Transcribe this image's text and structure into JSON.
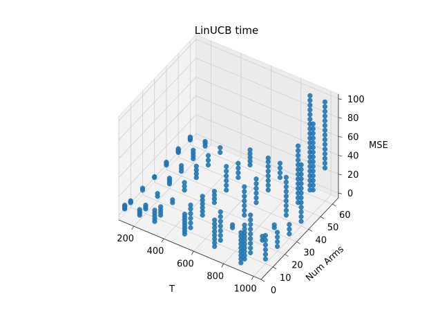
{
  "chart_data": {
    "type": "scatter",
    "projection": "3d",
    "title": "LinUCB time",
    "xlabel": "T",
    "ylabel": "Num Arms",
    "zlabel": "MSE",
    "xticks": [
      200,
      400,
      600,
      800,
      1000
    ],
    "yticks": [
      0,
      10,
      20,
      30,
      40,
      50,
      60
    ],
    "zticks": [
      0,
      20,
      40,
      60,
      80,
      100
    ],
    "xlim": [
      100,
      1050
    ],
    "ylim": [
      0,
      65
    ],
    "zlim": [
      -5,
      105
    ],
    "grid": true,
    "marker_color": "#1f77b4",
    "points": [
      {
        "T": 100,
        "arms": 5,
        "mse": [
          0,
          1,
          2,
          3,
          4
        ]
      },
      {
        "T": 100,
        "arms": 10,
        "mse": [
          0,
          1,
          2
        ]
      },
      {
        "T": 100,
        "arms": 20,
        "mse": [
          0,
          2
        ]
      },
      {
        "T": 100,
        "arms": 30,
        "mse": [
          0,
          1
        ]
      },
      {
        "T": 100,
        "arms": 40,
        "mse": [
          0,
          2,
          3
        ]
      },
      {
        "T": 100,
        "arms": 50,
        "mse": [
          0,
          1,
          2,
          3,
          4
        ]
      },
      {
        "T": 100,
        "arms": 60,
        "mse": [
          0,
          1,
          2,
          3
        ]
      },
      {
        "T": 200,
        "arms": 5,
        "mse": [
          0,
          2,
          4,
          6
        ]
      },
      {
        "T": 200,
        "arms": 10,
        "mse": [
          0,
          2,
          4
        ]
      },
      {
        "T": 200,
        "arms": 20,
        "mse": [
          0,
          3
        ]
      },
      {
        "T": 200,
        "arms": 30,
        "mse": [
          0,
          2,
          4,
          6
        ]
      },
      {
        "T": 200,
        "arms": 40,
        "mse": [
          0,
          3,
          6
        ]
      },
      {
        "T": 200,
        "arms": 50,
        "mse": [
          0,
          3,
          6,
          9
        ]
      },
      {
        "T": 200,
        "arms": 60,
        "mse": [
          0,
          3,
          5
        ]
      },
      {
        "T": 300,
        "arms": 5,
        "mse": [
          0,
          3,
          6,
          9,
          12
        ]
      },
      {
        "T": 300,
        "arms": 10,
        "mse": [
          0,
          3,
          6,
          9
        ]
      },
      {
        "T": 300,
        "arms": 20,
        "mse": [
          0,
          3
        ]
      },
      {
        "T": 300,
        "arms": 30,
        "mse": [
          0,
          4,
          8
        ]
      },
      {
        "T": 300,
        "arms": 40,
        "mse": [
          0,
          4,
          8,
          12
        ]
      },
      {
        "T": 300,
        "arms": 50,
        "mse": [
          0,
          5,
          10
        ]
      },
      {
        "T": 300,
        "arms": 60,
        "mse": [
          0,
          5
        ]
      },
      {
        "T": 500,
        "arms": 5,
        "mse": [
          0,
          3,
          6,
          9,
          12,
          15,
          18,
          21
        ]
      },
      {
        "T": 500,
        "arms": 10,
        "mse": [
          0,
          5,
          10,
          15,
          20,
          24
        ]
      },
      {
        "T": 500,
        "arms": 20,
        "mse": [
          0,
          4,
          8,
          12,
          16,
          20
        ]
      },
      {
        "T": 500,
        "arms": 30,
        "mse": [
          0,
          4,
          8,
          12
        ]
      },
      {
        "T": 500,
        "arms": 40,
        "mse": [
          0,
          5,
          10,
          15,
          20,
          25
        ]
      },
      {
        "T": 500,
        "arms": 50,
        "mse": [
          0,
          5,
          10,
          15
        ]
      },
      {
        "T": 500,
        "arms": 60,
        "mse": [
          0,
          4,
          8,
          12,
          16
        ]
      },
      {
        "T": 700,
        "arms": 5,
        "mse": [
          0,
          4,
          8,
          12,
          16,
          20,
          24,
          28
        ]
      },
      {
        "T": 700,
        "arms": 10,
        "mse": [
          0,
          5,
          10,
          15,
          20,
          25,
          30
        ]
      },
      {
        "T": 700,
        "arms": 20,
        "mse": [
          0,
          3
        ]
      },
      {
        "T": 700,
        "arms": 30,
        "mse": [
          0,
          5,
          10,
          15,
          20,
          25,
          30
        ]
      },
      {
        "T": 700,
        "arms": 40,
        "mse": [
          0,
          5,
          10,
          15,
          20,
          25
        ]
      },
      {
        "T": 700,
        "arms": 50,
        "mse": [
          0,
          5,
          10,
          15,
          20,
          25,
          30,
          34
        ]
      },
      {
        "T": 700,
        "arms": 60,
        "mse": [
          0,
          5,
          10,
          15
        ]
      },
      {
        "T": 900,
        "arms": 2,
        "mse": [
          0,
          4,
          8,
          12,
          16,
          20,
          24,
          28,
          32
        ]
      },
      {
        "T": 900,
        "arms": 5,
        "mse": [
          0,
          4,
          8,
          12,
          16,
          20,
          24,
          28,
          32,
          36
        ]
      },
      {
        "T": 900,
        "arms": 10,
        "mse": [
          0,
          5,
          10,
          15,
          20,
          25,
          30,
          35,
          40
        ]
      },
      {
        "T": 900,
        "arms": 20,
        "mse": [
          0,
          4
        ]
      },
      {
        "T": 900,
        "arms": 30,
        "mse": [
          0,
          3
        ]
      },
      {
        "T": 900,
        "arms": 40,
        "mse": [
          0,
          5,
          10,
          15,
          20,
          25,
          30,
          35,
          40
        ]
      },
      {
        "T": 900,
        "arms": 50,
        "mse": [
          0,
          5,
          10,
          15,
          20,
          25,
          30,
          35,
          40,
          45,
          50,
          55,
          60
        ]
      },
      {
        "T": 900,
        "arms": 60,
        "mse": [
          0,
          5,
          10,
          15,
          20,
          25,
          30,
          35,
          40,
          45,
          50,
          55,
          60,
          65,
          70,
          75,
          80,
          85,
          90,
          95,
          100
        ]
      },
      {
        "T": 1000,
        "arms": 10,
        "mse": [
          0,
          5,
          10,
          15,
          20,
          25
        ]
      },
      {
        "T": 1000,
        "arms": 20,
        "mse": [
          0,
          5,
          10,
          15
        ]
      },
      {
        "T": 1000,
        "arms": 30,
        "mse": [
          0,
          5,
          10
        ]
      },
      {
        "T": 1000,
        "arms": 40,
        "mse": [
          0,
          5,
          10,
          15,
          20,
          25,
          30,
          35,
          40,
          45,
          50,
          55,
          60
        ]
      },
      {
        "T": 1000,
        "arms": 50,
        "mse": [
          20,
          25,
          30,
          35,
          40,
          45,
          50,
          55,
          60,
          65,
          70,
          75,
          80,
          85,
          90
        ]
      },
      {
        "T": 1000,
        "arms": 60,
        "mse": [
          30,
          35,
          40,
          45,
          50,
          55,
          60,
          65,
          70,
          75,
          80,
          85,
          90,
          95,
          100
        ]
      }
    ]
  }
}
